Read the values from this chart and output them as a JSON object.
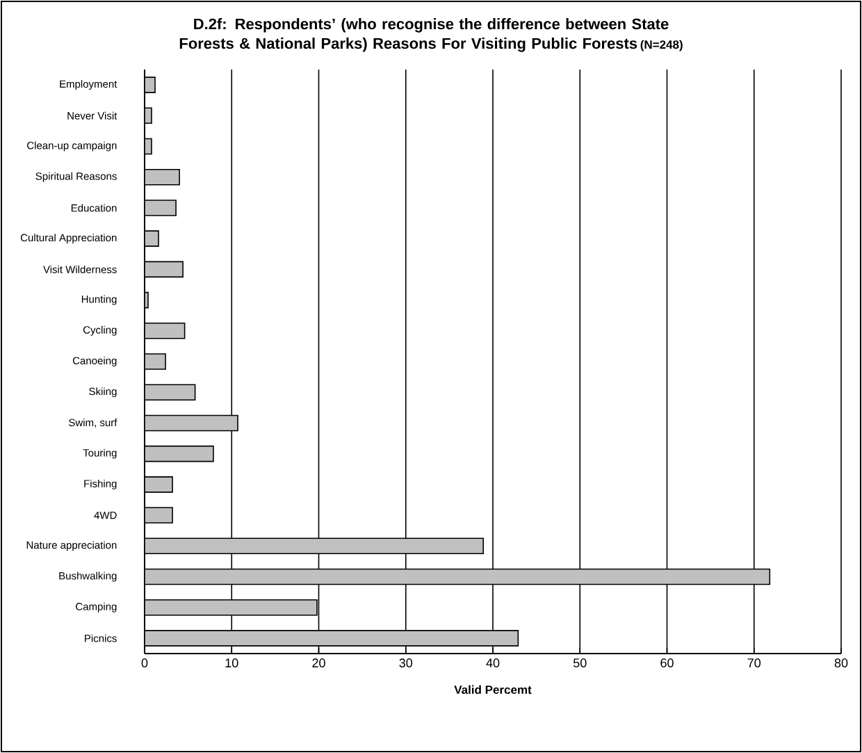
{
  "chart_data": {
    "type": "bar",
    "orientation": "horizontal",
    "title": "D.2f: Respondents’ (who recognise the difference between State Forests & National Parks) Reasons For Visiting Public Forests",
    "subtitle": "(N=248)",
    "xlabel": "Valid Percemt",
    "categories": [
      "Employment",
      "Never Visit",
      "Clean-up campaign",
      "Spiritual Reasons",
      "Education",
      "Cultural Appreciation",
      "Visit Wilderness",
      "Hunting",
      "Cycling",
      "Canoeing",
      "Skiing",
      "Swim, surf",
      "Touring",
      "Fishing",
      "4WD",
      "Nature appreciation",
      "Bushwalking",
      "Camping",
      "Picnics"
    ],
    "values": [
      1.2,
      0.8,
      0.8,
      4.0,
      3.6,
      1.6,
      4.4,
      0.4,
      4.6,
      2.4,
      5.8,
      10.7,
      7.9,
      3.2,
      3.2,
      38.9,
      71.8,
      19.8,
      42.9
    ],
    "color": "#c0c0c0",
    "xlim": [
      0,
      80
    ],
    "xticks": [
      0,
      10,
      20,
      30,
      40,
      50,
      60,
      70,
      80
    ],
    "grid": "x"
  }
}
